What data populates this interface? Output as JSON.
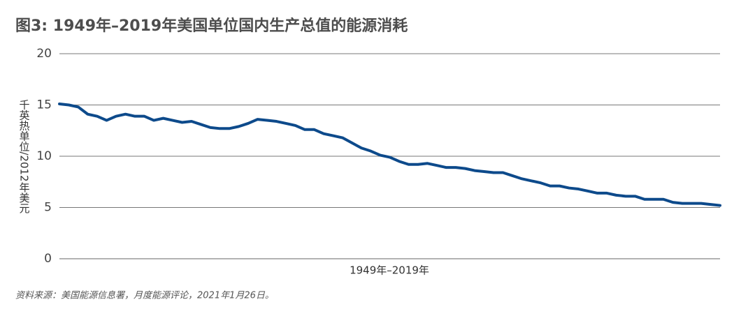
{
  "chart_data": {
    "type": "line",
    "title": "图3: 1949年–2019年美国单位国内生产总值的能源消耗",
    "y_label": "千英热单位/2012年美元",
    "x_label": "1949年–2019年",
    "source": "资料来源：美国能源信息署，月度能源评论，2021年1月26日。",
    "categories": [
      null,
      null,
      null,
      null,
      null,
      null,
      null,
      null,
      null,
      null,
      null,
      null,
      null,
      null,
      null,
      null,
      null,
      null,
      null,
      null,
      null,
      null,
      null,
      null,
      null,
      null,
      null,
      null,
      null,
      null,
      null,
      null,
      null,
      null,
      null,
      null,
      null,
      null,
      null,
      null,
      null,
      null,
      null,
      null,
      null,
      null,
      null,
      null,
      null,
      null,
      null,
      null,
      null,
      null,
      null,
      null,
      null,
      null,
      null,
      null,
      null,
      null,
      null,
      null,
      null,
      null,
      null,
      null,
      null,
      null,
      null
    ],
    "series": [
      {
        "name": null,
        "color": "#0d4a8b",
        "values": [
          15.1,
          15.0,
          14.8,
          14.1,
          13.9,
          13.5,
          13.9,
          14.1,
          13.9,
          13.9,
          13.5,
          13.7,
          13.5,
          13.3,
          13.4,
          13.1,
          12.8,
          12.7,
          12.7,
          12.9,
          13.2,
          13.6,
          13.5,
          13.4,
          13.2,
          13.0,
          12.6,
          12.6,
          12.2,
          12.0,
          11.8,
          11.3,
          10.8,
          10.5,
          10.1,
          9.9,
          9.5,
          9.2,
          9.2,
          9.3,
          9.1,
          8.9,
          8.9,
          8.8,
          8.6,
          8.5,
          8.4,
          8.4,
          8.1,
          7.8,
          7.6,
          7.4,
          7.1,
          7.1,
          6.9,
          6.8,
          6.6,
          6.4,
          6.4,
          6.2,
          6.1,
          6.1,
          5.8,
          5.8,
          5.8,
          5.5,
          5.4,
          5.4,
          5.4,
          5.3,
          5.2
        ]
      }
    ],
    "ylim": [
      0,
      20
    ],
    "yticks": [
      0,
      5,
      10,
      15,
      20
    ],
    "grid": true
  }
}
